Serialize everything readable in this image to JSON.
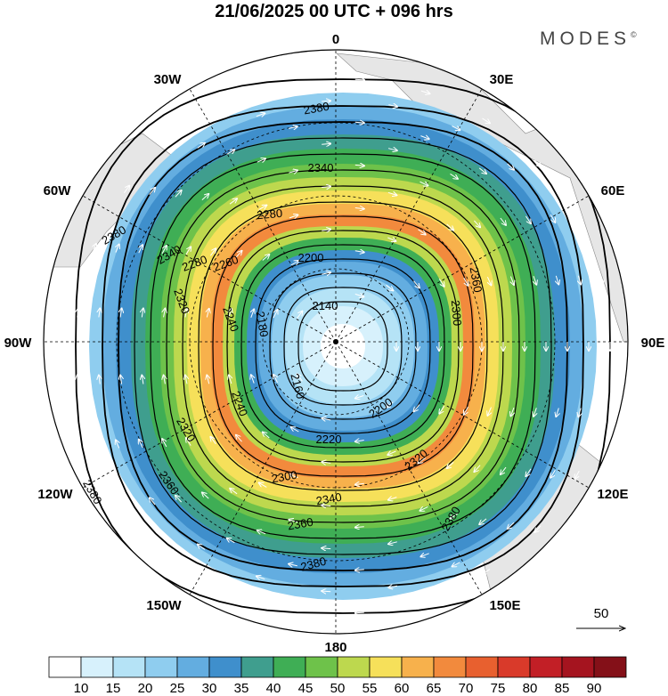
{
  "title": "21/06/2025  00 UTC  + 096 hrs",
  "brand": "MODES",
  "brand_mark": "©",
  "longitude_labels": [
    {
      "name": "0",
      "text": "0"
    },
    {
      "name": "30e",
      "text": "30E"
    },
    {
      "name": "60e",
      "text": "60E"
    },
    {
      "name": "90e",
      "text": "90E"
    },
    {
      "name": "120e",
      "text": "120E"
    },
    {
      "name": "150e",
      "text": "150E"
    },
    {
      "name": "180",
      "text": "180"
    },
    {
      "name": "150w",
      "text": "150W"
    },
    {
      "name": "120w",
      "text": "120W"
    },
    {
      "name": "90w",
      "text": "90W"
    },
    {
      "name": "60w",
      "text": "60W"
    },
    {
      "name": "30w",
      "text": "30W"
    }
  ],
  "contour_labels": [
    "2380",
    "2380",
    "2380",
    "2380",
    "2380",
    "2360",
    "2360",
    "2360",
    "2340",
    "2340",
    "2340",
    "2320",
    "2320",
    "2320",
    "2300",
    "2300",
    "2280",
    "2280",
    "2260",
    "2240",
    "2240",
    "2220",
    "2200",
    "2200",
    "2180",
    "2160",
    "2140"
  ],
  "vector_reference": {
    "value": "50"
  },
  "colorbar": {
    "labels": [
      "10",
      "15",
      "20",
      "25",
      "30",
      "35",
      "40",
      "45",
      "50",
      "55",
      "60",
      "65",
      "70",
      "75",
      "80",
      "85",
      "90"
    ],
    "colors": [
      "#ffffff",
      "#d7f1fc",
      "#b5e3f6",
      "#8fcdef",
      "#63ade0",
      "#3f8fcc",
      "#3f9e8e",
      "#3fae55",
      "#6ec24a",
      "#bdd84e",
      "#f6e05a",
      "#f7b14c",
      "#f28a3d",
      "#e8602f",
      "#d93a2a",
      "#c21f26",
      "#a5141f",
      "#841018"
    ]
  },
  "field_colors": {
    "land": "#e6e6e6",
    "contour": "#000000",
    "vectors": "#ffffff",
    "grid": "#000000"
  }
}
